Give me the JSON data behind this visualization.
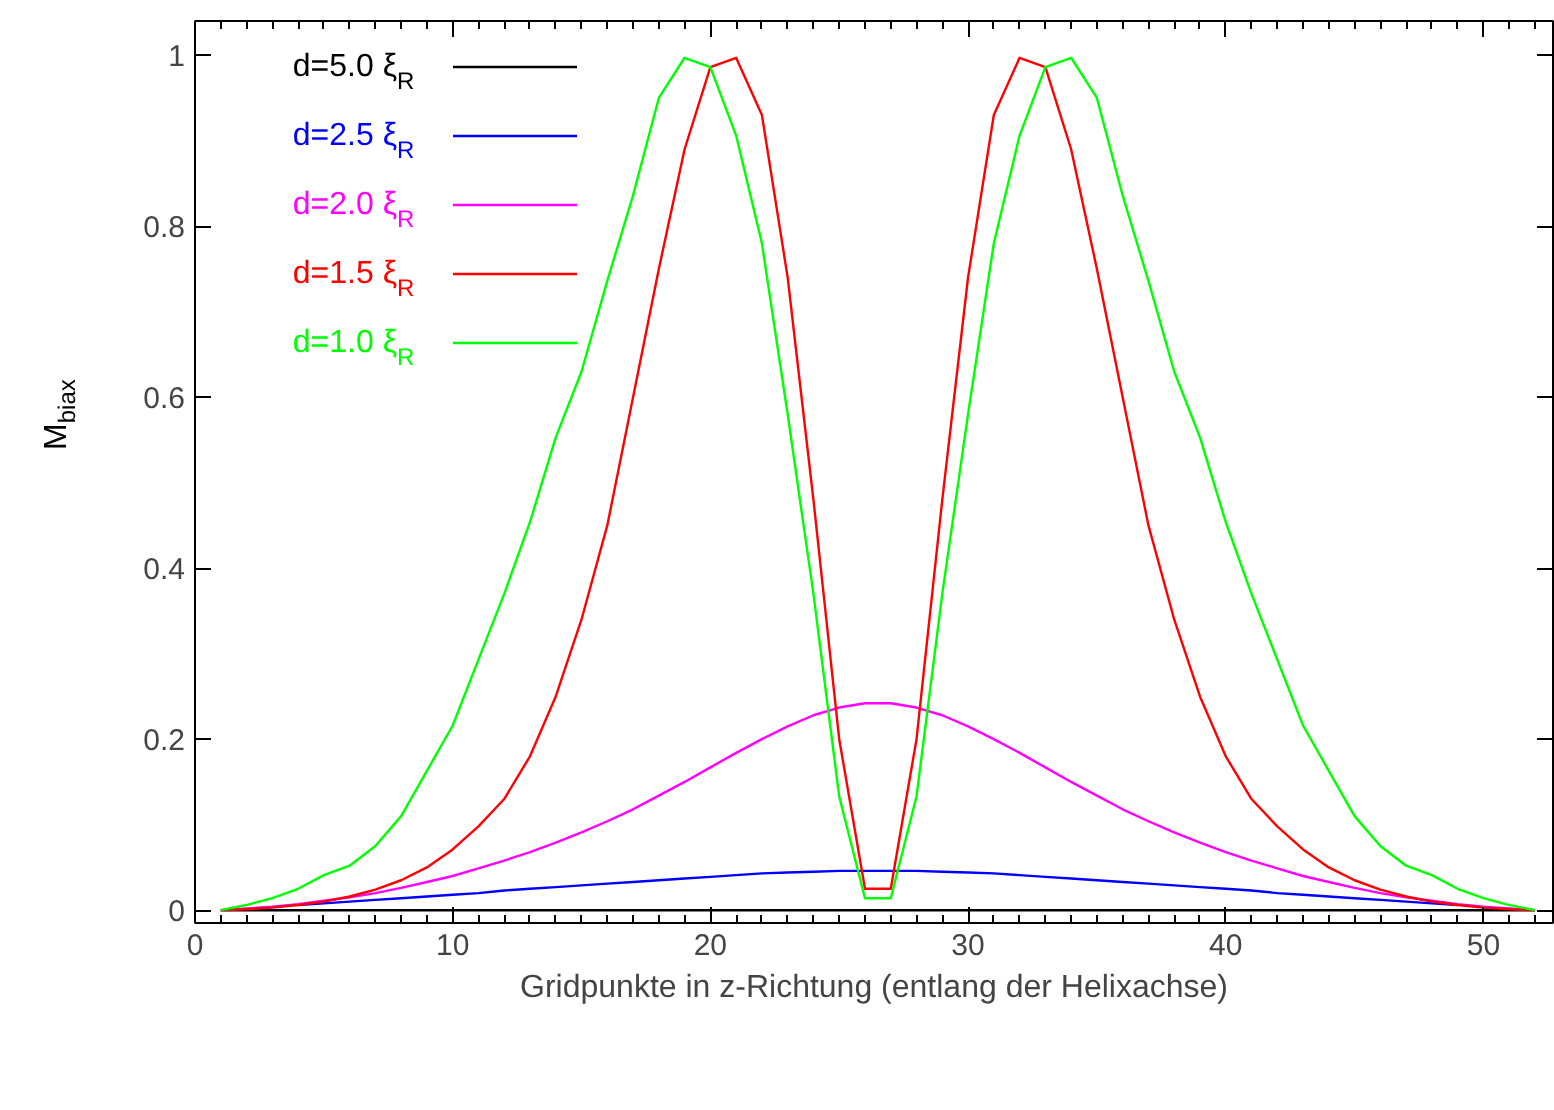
{
  "chart_data": {
    "type": "line",
    "xlabel": "Gridpunkte in z-Richtung (entlang der Helixachse)",
    "ylabel": "M$_{biax}$",
    "x": [
      1,
      2,
      3,
      4,
      5,
      6,
      7,
      8,
      9,
      10,
      11,
      12,
      13,
      14,
      15,
      16,
      17,
      18,
      19,
      20,
      21,
      22,
      23,
      24,
      25,
      26,
      27,
      28,
      29,
      30,
      31,
      32,
      33,
      34,
      35,
      36,
      37,
      38,
      39,
      40,
      41,
      42,
      43,
      44,
      45,
      46,
      47,
      48,
      49,
      50,
      51,
      52
    ],
    "xlim": [
      0,
      52.7
    ],
    "xticks": [
      0,
      10,
      20,
      30,
      40,
      50
    ],
    "ylim": [
      -0.015,
      1.04
    ],
    "yticks": [
      0,
      0.2,
      0.4,
      0.6,
      0.8,
      1
    ],
    "grid": false,
    "legend": "top left",
    "line_style": "solid",
    "marker": "none",
    "series": [
      {
        "name": "d=5.0 ξ$_{R}$",
        "color": "#000000",
        "values": [
          0,
          0,
          0,
          0,
          0,
          0,
          0,
          0,
          0,
          0,
          0,
          0,
          0,
          0,
          0,
          0,
          0,
          0,
          0,
          0,
          0,
          0,
          0,
          0,
          0,
          0,
          0,
          0,
          0,
          0,
          0,
          0,
          0,
          0,
          0,
          0,
          0,
          0,
          0,
          0,
          0,
          0,
          0,
          0,
          0,
          0,
          0,
          0,
          0,
          0,
          0,
          0
        ]
      },
      {
        "name": "d=2.5 ξ$_{R}$",
        "color": "#0000ff",
        "values": [
          null,
          null,
          null,
          0.006,
          0.008,
          0.01,
          0.012,
          0.014,
          0.016,
          0.018,
          0.02,
          0.023,
          0.025,
          0.027,
          0.029,
          0.031,
          0.033,
          0.035,
          0.037,
          0.039,
          0.041,
          0.043,
          0.044,
          0.045,
          0.046,
          0.046,
          0.046,
          0.046,
          0.045,
          0.044,
          0.043,
          0.041,
          0.039,
          0.037,
          0.035,
          0.033,
          0.031,
          0.029,
          0.027,
          0.025,
          0.023,
          0.02,
          0.018,
          0.016,
          0.014,
          0.012,
          0.01,
          0.008,
          0.006,
          null,
          null,
          null
        ]
      },
      {
        "name": "d=2.0 ξ$_{R}$",
        "color": "#ff00ff",
        "values": [
          0,
          0.002,
          0.004,
          0.007,
          0.011,
          0.015,
          0.02,
          0.026,
          0.033,
          0.04,
          0.049,
          0.058,
          0.068,
          0.079,
          0.091,
          0.104,
          0.118,
          0.134,
          0.15,
          0.167,
          0.184,
          0.2,
          0.215,
          0.228,
          0.237,
          0.242,
          0.242,
          0.237,
          0.228,
          0.215,
          0.2,
          0.184,
          0.167,
          0.15,
          0.134,
          0.118,
          0.104,
          0.091,
          0.079,
          0.068,
          0.058,
          0.049,
          0.04,
          0.033,
          0.026,
          0.02,
          0.015,
          0.011,
          0.007,
          0.004,
          0.002,
          0
        ]
      },
      {
        "name": "d=1.5 ξ$_{R}$",
        "color": "#ff0000",
        "values": [
          0,
          0.001,
          0.003,
          0.006,
          0.01,
          0.016,
          0.024,
          0.035,
          0.05,
          0.071,
          0.098,
          0.13,
          0.18,
          0.25,
          0.34,
          0.45,
          0.6,
          0.75,
          0.89,
          0.986,
          0.997,
          0.93,
          0.74,
          0.48,
          0.2,
          0.025,
          0.025,
          0.2,
          0.48,
          0.74,
          0.93,
          0.997,
          0.986,
          0.89,
          0.75,
          0.6,
          0.45,
          0.34,
          0.25,
          0.18,
          0.13,
          0.098,
          0.071,
          0.05,
          0.035,
          0.024,
          0.016,
          0.01,
          0.006,
          0.003,
          0.001,
          0
        ]
      },
      {
        "name": "d=1.0 ξ$_{R}$",
        "color": "#00ff00",
        "values": [
          0,
          0.006,
          0.014,
          0.025,
          0.041,
          0.052,
          0.075,
          0.11,
          0.163,
          0.216,
          0.293,
          0.37,
          0.454,
          0.553,
          0.63,
          0.736,
          0.836,
          0.95,
          0.997,
          0.986,
          0.906,
          0.78,
          0.58,
          0.37,
          0.133,
          0.014,
          0.014,
          0.133,
          0.37,
          0.58,
          0.78,
          0.906,
          0.986,
          0.997,
          0.95,
          0.836,
          0.736,
          0.63,
          0.553,
          0.454,
          0.37,
          0.293,
          0.216,
          0.163,
          0.11,
          0.075,
          0.052,
          0.041,
          0.025,
          0.014,
          0.006,
          0
        ]
      }
    ]
  }
}
